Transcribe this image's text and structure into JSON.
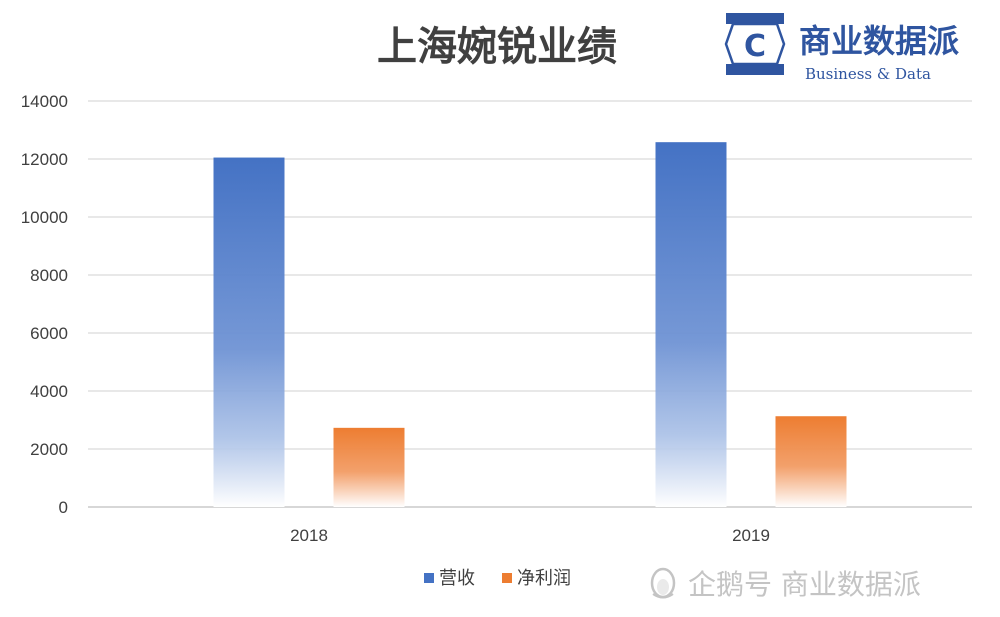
{
  "brand": {
    "logo_letter": "C",
    "name_cn": "商业数据派",
    "name_en": "Business & Data",
    "color": "#2f55a0"
  },
  "watermark": {
    "text": "企鹅号 商业数据派",
    "icon": "penguin-icon"
  },
  "chart_data": {
    "type": "bar",
    "title": "上海婉锐业绩",
    "xlabel": "",
    "ylabel": "",
    "categories": [
      "2018",
      "2019"
    ],
    "ylim": [
      0,
      14000
    ],
    "yticks": [
      0,
      2000,
      4000,
      6000,
      8000,
      10000,
      12000,
      14000
    ],
    "grid": true,
    "legend_position": "bottom",
    "series": [
      {
        "name": "营收",
        "values": [
          12050,
          12580
        ],
        "color": "#4472c4"
      },
      {
        "name": "净利润",
        "values": [
          2730,
          3130
        ],
        "color": "#ed7d31"
      }
    ]
  }
}
